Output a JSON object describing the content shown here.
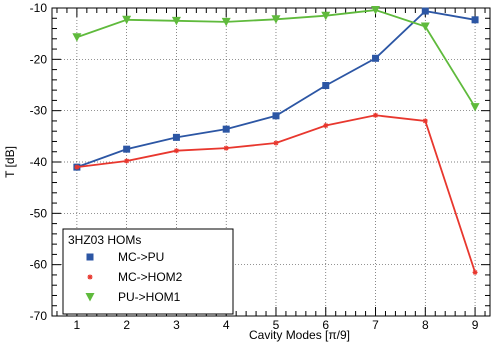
{
  "chart_data": {
    "type": "line",
    "title": "",
    "xlabel": "Cavity Modes [π/9]",
    "ylabel": "T [dB]",
    "x": [
      1,
      2,
      3,
      4,
      5,
      6,
      7,
      8,
      9
    ],
    "xlim": [
      0.5,
      9.3
    ],
    "ylim": [
      -70,
      -10
    ],
    "xticks": [
      "1",
      "2",
      "3",
      "4",
      "5",
      "6",
      "7",
      "8",
      "9"
    ],
    "yticks": [
      "-10",
      "-20",
      "-30",
      "-40",
      "-50",
      "-60",
      "-70"
    ],
    "grid": true,
    "legend": {
      "title": "3HZ03 HOMs",
      "position": "bottom-left"
    },
    "series": [
      {
        "name": "MC->PU",
        "color": "#2c56a4",
        "marker": "square",
        "values": [
          -41.0,
          -37.5,
          -35.2,
          -33.6,
          -31.0,
          -25.1,
          -19.8,
          -10.6,
          -12.3
        ]
      },
      {
        "name": "MC->HOM2",
        "color": "#e8372e",
        "marker": "star",
        "values": [
          -41.0,
          -39.8,
          -37.8,
          -37.3,
          -36.3,
          -32.9,
          -30.9,
          -32.0,
          -61.5
        ]
      },
      {
        "name": "PU->HOM1",
        "color": "#5fba3c",
        "marker": "triangle-down",
        "values": [
          -15.7,
          -12.3,
          -12.5,
          -12.7,
          -12.2,
          -11.5,
          -10.4,
          -13.6,
          -29.3
        ]
      }
    ]
  }
}
